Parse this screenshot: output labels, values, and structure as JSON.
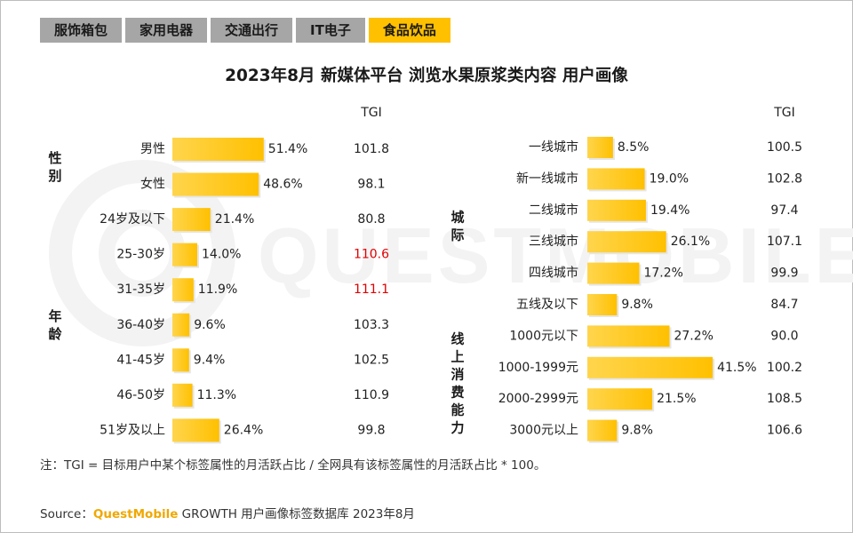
{
  "tabs": [
    {
      "label": "服饰箱包",
      "active": false
    },
    {
      "label": "家用电器",
      "active": false
    },
    {
      "label": "交通出行",
      "active": false
    },
    {
      "label": "IT电子",
      "active": false
    },
    {
      "label": "食品饮品",
      "active": true
    }
  ],
  "title": "2023年8月 新媒体平台 浏览水果原浆类内容 用户画像",
  "watermark": "QUESTMOBILE",
  "footnote": "注：TGI = 目标用户中某个标签属性的月活跃占比 / 全网具有该标签属性的月活跃占比 * 100。",
  "source": {
    "prefix": "Source：",
    "brand": "QuestMobile",
    "rest": " GROWTH 用户画像标签数据库 2023年8月"
  },
  "colors": {
    "bar": "#ffc000",
    "tab_active": "#ffc000",
    "tab_inactive": "#a6a6a6",
    "highlight": "#e00000"
  },
  "chart_data": [
    {
      "type": "bar",
      "orientation": "horizontal",
      "tgi_header": "TGI",
      "value_unit": "%",
      "groups": [
        {
          "label": "性别",
          "categories": [
            "男性",
            "女性"
          ],
          "values": [
            51.4,
            48.6
          ],
          "tgi": [
            "101.8",
            "98.1"
          ],
          "tgi_highlight": [
            false,
            false
          ]
        },
        {
          "label": "年龄",
          "categories": [
            "24岁及以下",
            "25-30岁",
            "31-35岁",
            "36-40岁",
            "41-45岁",
            "46-50岁",
            "51岁及以上"
          ],
          "values": [
            21.4,
            14.0,
            11.9,
            9.6,
            9.4,
            11.3,
            26.4
          ],
          "tgi": [
            "80.8",
            "110.6",
            "111.1",
            "103.3",
            "102.5",
            "110.9",
            "99.8"
          ],
          "tgi_highlight": [
            false,
            true,
            true,
            false,
            false,
            false,
            false
          ]
        }
      ]
    },
    {
      "type": "bar",
      "orientation": "horizontal",
      "tgi_header": "TGI",
      "value_unit": "%",
      "groups": [
        {
          "label": "城际",
          "categories": [
            "一线城市",
            "新一线城市",
            "二线城市",
            "三线城市",
            "四线城市",
            "五线及以下"
          ],
          "values": [
            8.5,
            19.0,
            19.4,
            26.1,
            17.2,
            9.8
          ],
          "tgi": [
            "100.5",
            "102.8",
            "97.4",
            "107.1",
            "99.9",
            "84.7"
          ],
          "tgi_highlight": [
            false,
            false,
            false,
            false,
            false,
            false
          ]
        },
        {
          "label": "线上消费能力",
          "categories": [
            "1000元以下",
            "1000-1999元",
            "2000-2999元",
            "3000元以上"
          ],
          "values": [
            27.2,
            41.5,
            21.5,
            9.8
          ],
          "tgi": [
            "90.0",
            "100.2",
            "108.5",
            "106.6"
          ],
          "tgi_highlight": [
            false,
            false,
            false,
            false
          ]
        }
      ]
    }
  ]
}
